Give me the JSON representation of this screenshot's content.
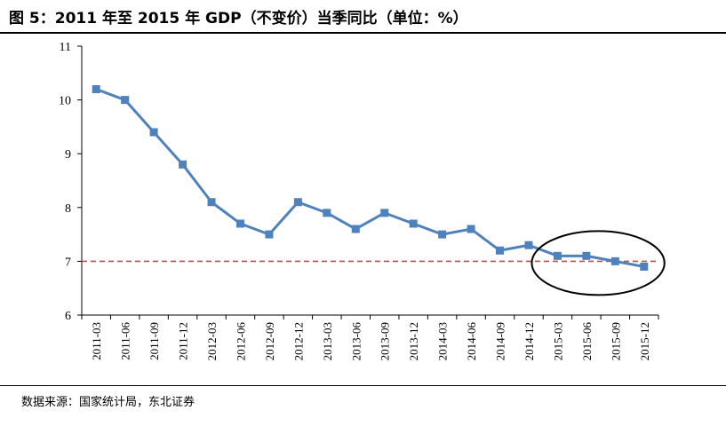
{
  "figure": {
    "title": "图  5：2011 年至 2015 年 GDP（不变价）当季同比（单位：%）",
    "source": "数据来源：国家统计局，东北证券"
  },
  "colors": {
    "series": "#4F81BD",
    "reference_line": "#C0504D",
    "axis": "#000000"
  },
  "chart_data": {
    "type": "line",
    "title": "",
    "xlabel": "",
    "ylabel": "",
    "ylim": [
      6,
      11
    ],
    "yticks": [
      6,
      7,
      8,
      9,
      10,
      11
    ],
    "grid": false,
    "legend": "none",
    "categories": [
      "2011-03",
      "2011-06",
      "2011-09",
      "2011-12",
      "2012-03",
      "2012-06",
      "2012-09",
      "2012-12",
      "2013-03",
      "2013-06",
      "2013-09",
      "2013-12",
      "2014-03",
      "2014-06",
      "2014-09",
      "2014-12",
      "2015-03",
      "2015-06",
      "2015-09",
      "2015-12"
    ],
    "series": [
      {
        "values": [
          10.2,
          10.0,
          9.4,
          8.8,
          8.1,
          7.7,
          7.5,
          8.1,
          7.9,
          7.6,
          7.9,
          7.7,
          7.5,
          7.6,
          7.2,
          7.3,
          7.1,
          7.1,
          7.0,
          6.9
        ]
      }
    ],
    "reference_line": {
      "y": 7,
      "style": "dashed"
    },
    "annotation": {
      "shape": "ellipse",
      "highlights": [
        "2015-03",
        "2015-06",
        "2015-09",
        "2015-12"
      ]
    }
  }
}
